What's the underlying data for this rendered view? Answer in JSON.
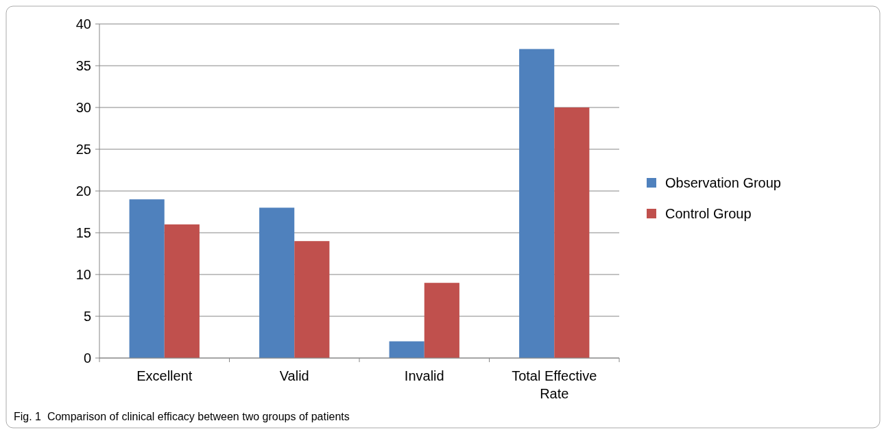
{
  "chart_data": {
    "type": "bar",
    "categories": [
      "Excellent",
      "Valid",
      "Invalid",
      "Total Effective Rate"
    ],
    "series": [
      {
        "name": "Observation Group",
        "color": "#4f81bd",
        "values": [
          19,
          18,
          2,
          37
        ]
      },
      {
        "name": "Control Group",
        "color": "#c0504d",
        "values": [
          16,
          14,
          9,
          30
        ]
      }
    ],
    "ylim": [
      0,
      40
    ],
    "yticks": [
      0,
      5,
      10,
      15,
      20,
      25,
      30,
      35,
      40
    ],
    "grid": "y",
    "legend": "right",
    "annotations": [
      "Fig. 1  Comparison of clinical efficacy between two groups of patients"
    ]
  }
}
